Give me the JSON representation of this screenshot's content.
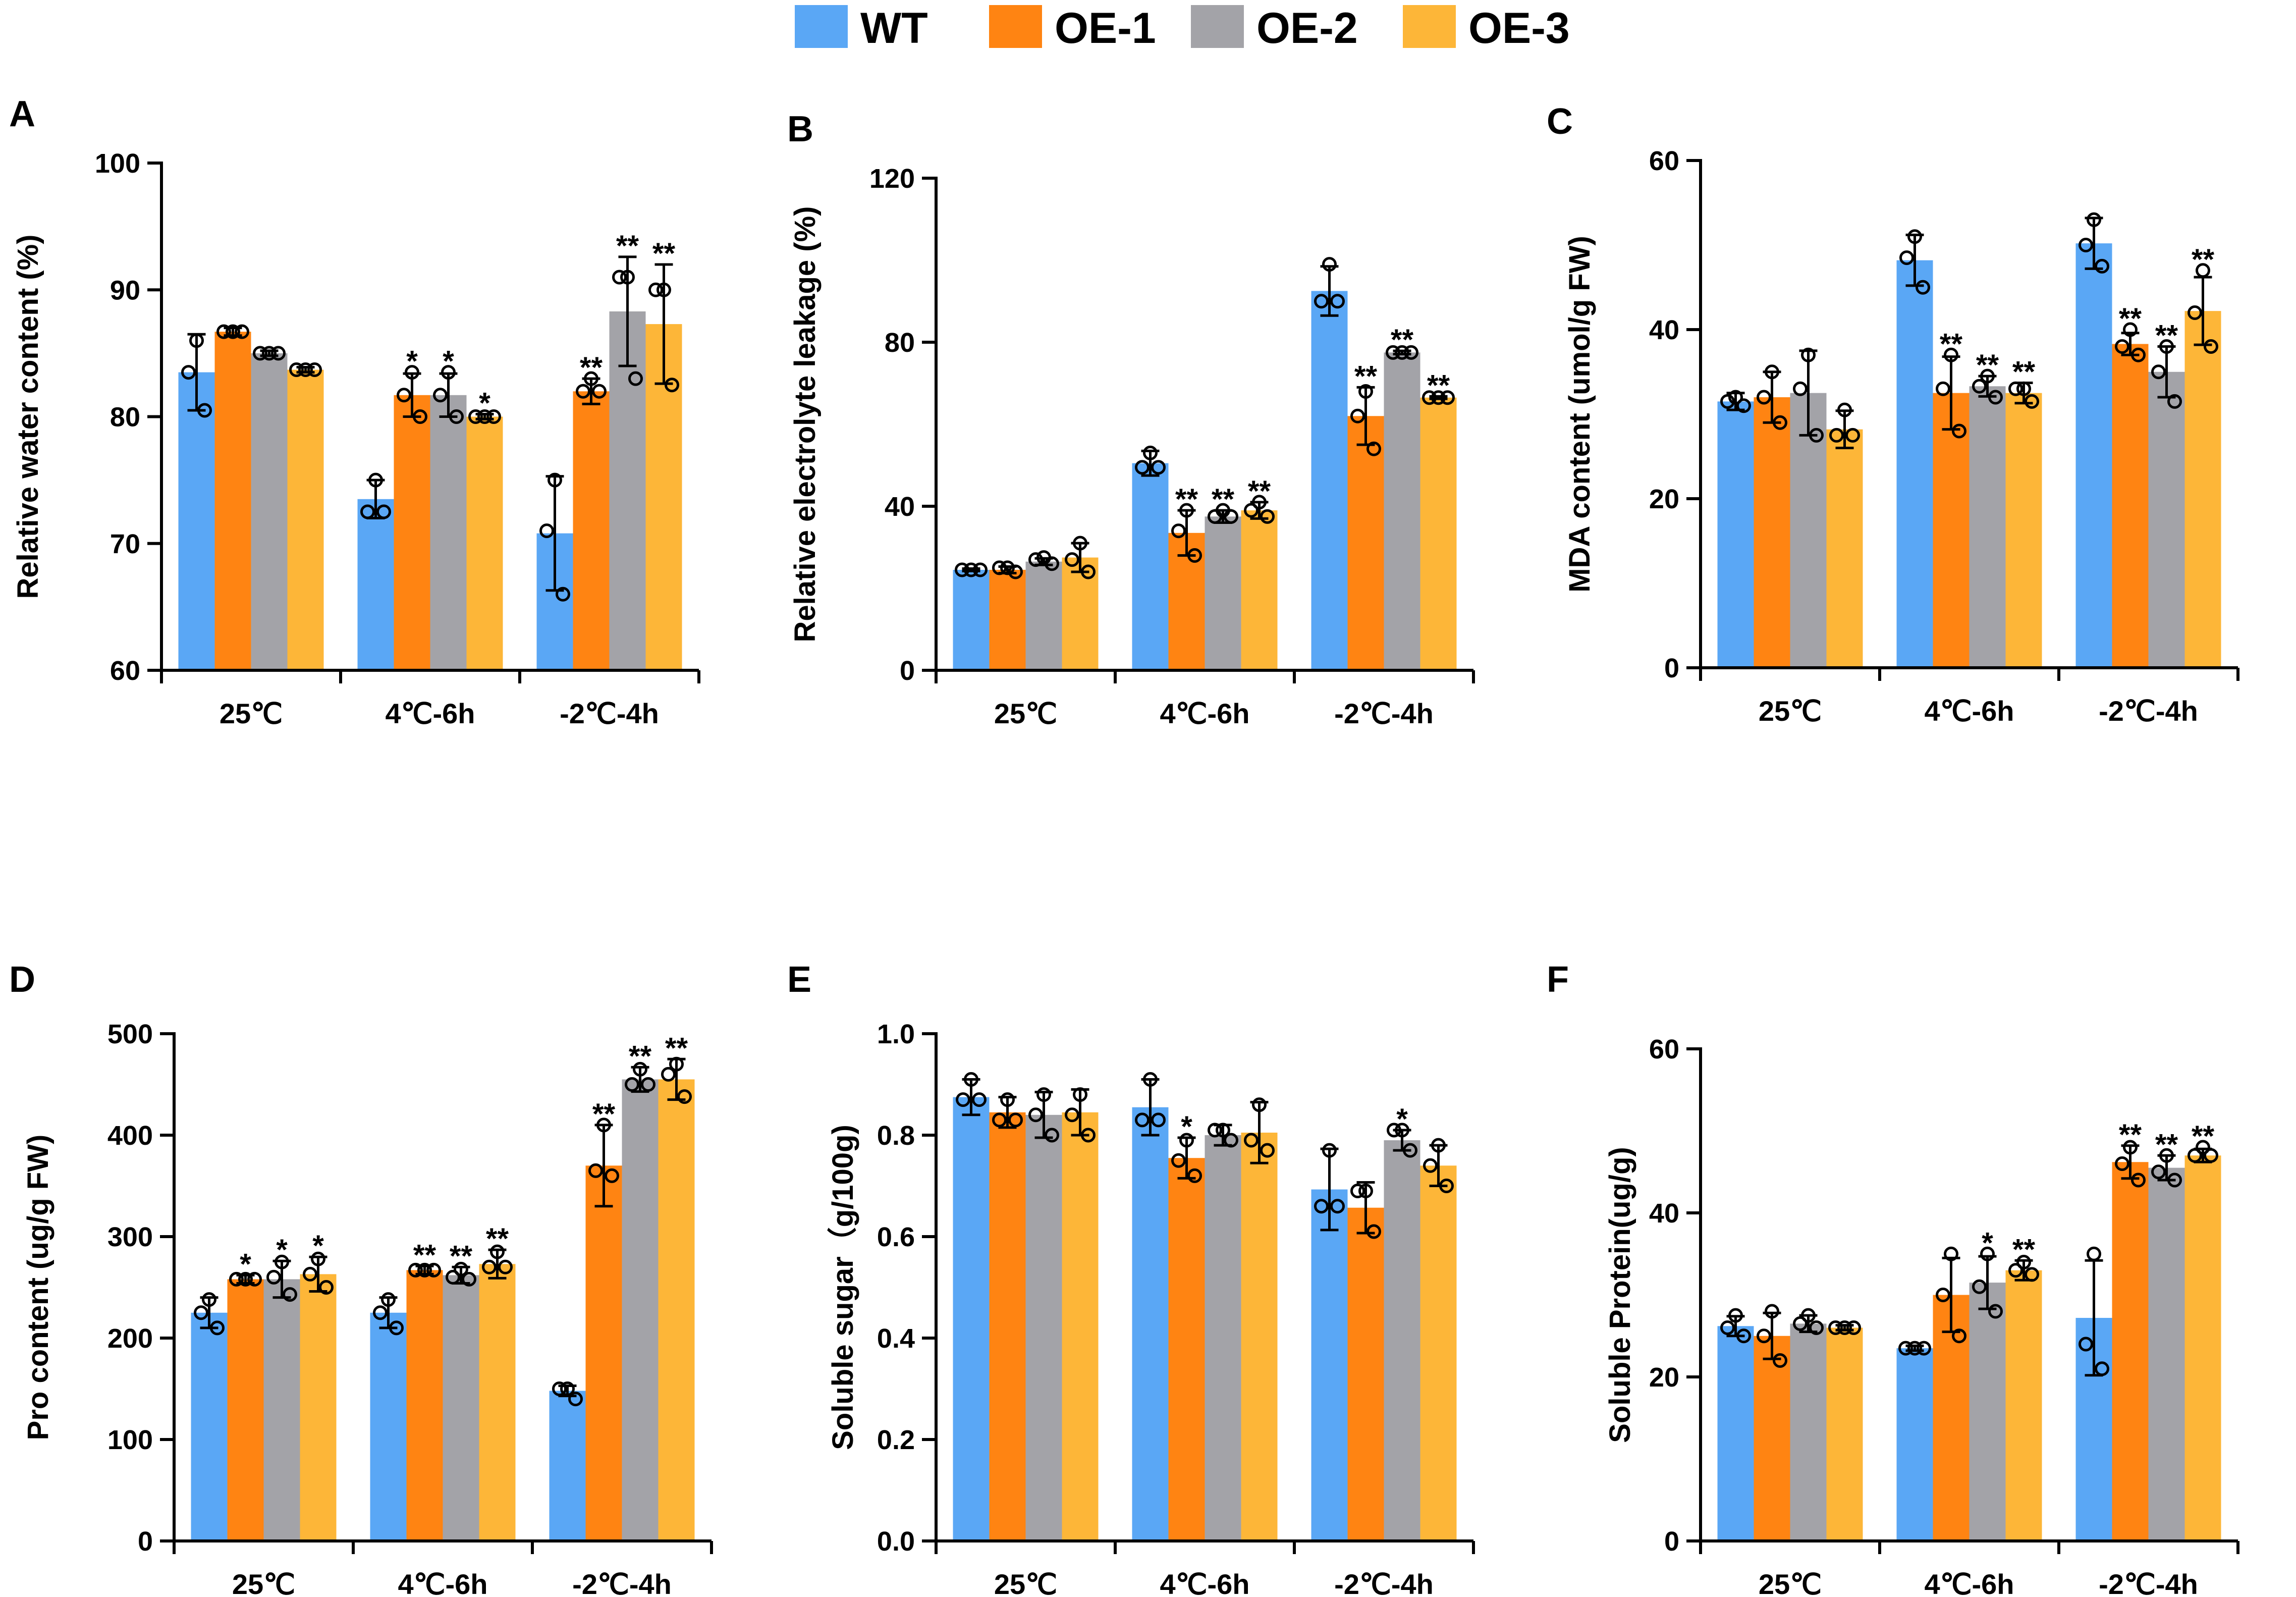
{
  "legend": [
    {
      "name": "WT",
      "color": "#5aa7f5"
    },
    {
      "name": "OE-1",
      "color": "#ff8412"
    },
    {
      "name": "OE-2",
      "color": "#a3a3a8"
    },
    {
      "name": "OE-3",
      "color": "#fdb638"
    }
  ],
  "chart_data": [
    {
      "panel": "A",
      "type": "bar",
      "ylabel": "Relative water content (%)",
      "ylim": [
        60,
        100
      ],
      "yticks": [
        60,
        70,
        80,
        90,
        100
      ],
      "categories": [
        "25℃",
        "4℃-6h",
        "-2℃-4h"
      ],
      "series": [
        {
          "name": "WT",
          "values": [
            83.5,
            73.5,
            70.8
          ],
          "errors": [
            3.0,
            1.5,
            4.5
          ],
          "points": [
            [
              86,
              83.5,
              80.5
            ],
            [
              75,
              72.5,
              72.5
            ],
            [
              75,
              71,
              66
            ]
          ]
        },
        {
          "name": "OE-1",
          "values": [
            86.7,
            81.7,
            82.0
          ],
          "errors": [
            0.3,
            1.7,
            1.0
          ],
          "points": [
            [
              86.7,
              86.7,
              86.7
            ],
            [
              83.5,
              81.7,
              80
            ],
            [
              83,
              82,
              82
            ]
          ]
        },
        {
          "name": "OE-2",
          "values": [
            85.0,
            81.7,
            88.3
          ],
          "errors": [
            0.2,
            1.7,
            4.3
          ],
          "points": [
            [
              85,
              85,
              85
            ],
            [
              83.5,
              81.7,
              80
            ],
            [
              91,
              91,
              83
            ]
          ]
        },
        {
          "name": "OE-3",
          "values": [
            83.7,
            80.0,
            87.3
          ],
          "errors": [
            0.2,
            0.2,
            4.7
          ],
          "points": [
            [
              83.7,
              83.7,
              83.7
            ],
            [
              80,
              80,
              80
            ],
            [
              90,
              90,
              82.5
            ]
          ]
        }
      ],
      "significance": [
        [
          "",
          "",
          ""
        ],
        [
          "",
          "*",
          "**"
        ],
        [
          "",
          "*",
          "**"
        ],
        [
          "",
          "*",
          "**"
        ]
      ]
    },
    {
      "panel": "B",
      "type": "bar",
      "ylabel": "Relative electrolyte leakage (%)",
      "ylim": [
        0,
        120
      ],
      "yticks": [
        0,
        40,
        80,
        120
      ],
      "categories": [
        "25℃",
        "4℃-6h",
        "-2℃-4h"
      ],
      "series": [
        {
          "name": "WT",
          "values": [
            24.5,
            50.5,
            92.5
          ],
          "errors": [
            0.3,
            3.0,
            6.0
          ],
          "points": [
            [
              24.5,
              24.5,
              24.5
            ],
            [
              53,
              49.5,
              49.5
            ],
            [
              99,
              90,
              90
            ]
          ]
        },
        {
          "name": "OE-1",
          "values": [
            24.5,
            33.5,
            62.0
          ],
          "errors": [
            0.8,
            5.5,
            7.0
          ],
          "points": [
            [
              25,
              25,
              24
            ],
            [
              39,
              34,
              28
            ],
            [
              68,
              62,
              54
            ]
          ]
        },
        {
          "name": "OE-2",
          "values": [
            26.5,
            37.5,
            77.5
          ],
          "errors": [
            0.8,
            1.5,
            0.4
          ],
          "points": [
            [
              27.5,
              27,
              26
            ],
            [
              39,
              37.5,
              37.5
            ],
            [
              77.5,
              77.5,
              77.5
            ]
          ]
        },
        {
          "name": "OE-3",
          "values": [
            27.5,
            39.0,
            66.5
          ],
          "errors": [
            3.5,
            2.0,
            0.3
          ],
          "points": [
            [
              31,
              27,
              24
            ],
            [
              41,
              39,
              37.5
            ],
            [
              66.5,
              66.5,
              66.5
            ]
          ]
        }
      ],
      "significance": [
        [
          "",
          "",
          ""
        ],
        [
          "",
          "**",
          "**"
        ],
        [
          "",
          "**",
          "**"
        ],
        [
          "",
          "**",
          "**"
        ]
      ]
    },
    {
      "panel": "C",
      "type": "bar",
      "ylabel": "MDA content (umol/g FW)",
      "ylim": [
        0,
        60
      ],
      "yticks": [
        0,
        20,
        40,
        60
      ],
      "categories": [
        "25℃",
        "4℃-6h",
        "-2℃-4h"
      ],
      "series": [
        {
          "name": "WT",
          "values": [
            31.5,
            48.2,
            50.2
          ],
          "errors": [
            1.0,
            3.0,
            3.0
          ],
          "points": [
            [
              32,
              31.5,
              31
            ],
            [
              51,
              48.5,
              45
            ],
            [
              53,
              50,
              47.5
            ]
          ]
        },
        {
          "name": "OE-1",
          "values": [
            32.0,
            32.5,
            38.3
          ],
          "errors": [
            3.0,
            4.3,
            1.3
          ],
          "points": [
            [
              35,
              32,
              29
            ],
            [
              37,
              33,
              28
            ],
            [
              40,
              38,
              37
            ]
          ]
        },
        {
          "name": "OE-2",
          "values": [
            32.5,
            33.3,
            35.0
          ],
          "errors": [
            5.0,
            1.2,
            3.0
          ],
          "points": [
            [
              37,
              33,
              27.5
            ],
            [
              34.5,
              33.3,
              32
            ],
            [
              38,
              35,
              31.5
            ]
          ]
        },
        {
          "name": "OE-3",
          "values": [
            28.2,
            32.5,
            42.2
          ],
          "errors": [
            2.2,
            1.2,
            4.0
          ],
          "points": [
            [
              30.5,
              27.5,
              27.5
            ],
            [
              33,
              33,
              31.5
            ],
            [
              47,
              42,
              38
            ]
          ]
        }
      ],
      "significance": [
        [
          "",
          "",
          ""
        ],
        [
          "",
          "**",
          "**"
        ],
        [
          "",
          "**",
          "**"
        ],
        [
          "",
          "**",
          "**"
        ]
      ]
    },
    {
      "panel": "D",
      "type": "bar",
      "ylabel": "Pro content (ug/g FW)",
      "ylim": [
        0,
        500
      ],
      "yticks": [
        0,
        100,
        200,
        300,
        400,
        500
      ],
      "categories": [
        "25℃",
        "4℃-6h",
        "-2℃-4h"
      ],
      "series": [
        {
          "name": "WT",
          "values": [
            225,
            225,
            148
          ],
          "errors": [
            15,
            15,
            5
          ],
          "points": [
            [
              238,
              225,
              210
            ],
            [
              238,
              225,
              210
            ],
            [
              150,
              150,
              140
            ]
          ]
        },
        {
          "name": "OE-1",
          "values": [
            258,
            267,
            370
          ],
          "errors": [
            4,
            4,
            40
          ],
          "points": [
            [
              258,
              258,
              258
            ],
            [
              267,
              267,
              267
            ],
            [
              410,
              365,
              360
            ]
          ]
        },
        {
          "name": "OE-2",
          "values": [
            258,
            262,
            455
          ],
          "errors": [
            18,
            8,
            12
          ],
          "points": [
            [
              275,
              260,
              243
            ],
            [
              268,
              260,
              258
            ],
            [
              465,
              450,
              450
            ]
          ]
        },
        {
          "name": "OE-3",
          "values": [
            263,
            273,
            455
          ],
          "errors": [
            17,
            14,
            20
          ],
          "points": [
            [
              278,
              263,
              250
            ],
            [
              285,
              270,
              270
            ],
            [
              470,
              460,
              438
            ]
          ]
        }
      ],
      "significance": [
        [
          "",
          "",
          ""
        ],
        [
          "*",
          "**",
          "**"
        ],
        [
          "*",
          "**",
          "**"
        ],
        [
          "*",
          "**",
          "**"
        ]
      ]
    },
    {
      "panel": "E",
      "type": "bar",
      "ylabel": "Soluble sugar（g/100g)",
      "ylim": [
        0,
        1.0
      ],
      "yticks": [
        "0.0",
        "0.2",
        "0.4",
        "0.6",
        "0.8",
        "1.0"
      ],
      "categories": [
        "25℃",
        "4℃-6h",
        "-2℃-4h"
      ],
      "series": [
        {
          "name": "WT",
          "values": [
            0.875,
            0.855,
            0.693
          ],
          "errors": [
            0.035,
            0.055,
            0.08
          ],
          "points": [
            [
              0.91,
              0.87,
              0.87
            ],
            [
              0.91,
              0.83,
              0.83
            ],
            [
              0.77,
              0.66,
              0.66
            ]
          ]
        },
        {
          "name": "OE-1",
          "values": [
            0.845,
            0.755,
            0.657
          ],
          "errors": [
            0.03,
            0.04,
            0.05
          ],
          "points": [
            [
              0.87,
              0.83,
              0.83
            ],
            [
              0.79,
              0.75,
              0.72
            ],
            [
              0.69,
              0.69,
              0.61
            ]
          ]
        },
        {
          "name": "OE-2",
          "values": [
            0.84,
            0.8,
            0.79
          ],
          "errors": [
            0.045,
            0.02,
            0.02
          ],
          "points": [
            [
              0.88,
              0.84,
              0.8
            ],
            [
              0.81,
              0.81,
              0.79
            ],
            [
              0.81,
              0.81,
              0.77
            ]
          ]
        },
        {
          "name": "OE-3",
          "values": [
            0.845,
            0.805,
            0.74
          ],
          "errors": [
            0.045,
            0.06,
            0.04
          ],
          "points": [
            [
              0.88,
              0.84,
              0.8
            ],
            [
              0.86,
              0.79,
              0.77
            ],
            [
              0.78,
              0.74,
              0.7
            ]
          ]
        }
      ],
      "significance": [
        [
          "",
          "",
          ""
        ],
        [
          "",
          "*",
          ""
        ],
        [
          "",
          "",
          "*"
        ],
        [
          "",
          "",
          ""
        ]
      ]
    },
    {
      "panel": "F",
      "type": "bar",
      "ylabel": "Soluble Protein(ug/g)",
      "ylim": [
        0,
        60
      ],
      "yticks": [
        0,
        20,
        40,
        60
      ],
      "categories": [
        "25℃",
        "4℃-6h",
        "-2℃-4h"
      ],
      "series": [
        {
          "name": "WT",
          "values": [
            26.2,
            23.5,
            27.2
          ],
          "errors": [
            1.2,
            0.3,
            7.0
          ],
          "points": [
            [
              27.5,
              26,
              25
            ],
            [
              23.5,
              23.5,
              23.5
            ],
            [
              35,
              24,
              21
            ]
          ]
        },
        {
          "name": "OE-1",
          "values": [
            25.0,
            30.0,
            46.2
          ],
          "errors": [
            2.8,
            4.5,
            2.0
          ],
          "points": [
            [
              28,
              25,
              22
            ],
            [
              35,
              30,
              25
            ],
            [
              48,
              46,
              44
            ]
          ]
        },
        {
          "name": "OE-2",
          "values": [
            26.5,
            31.5,
            45.5
          ],
          "errors": [
            1.0,
            3.2,
            1.5
          ],
          "points": [
            [
              27.5,
              26.5,
              26
            ],
            [
              35,
              31,
              28
            ],
            [
              47,
              45,
              44
            ]
          ]
        },
        {
          "name": "OE-3",
          "values": [
            26.0,
            33.0,
            47.0
          ],
          "errors": [
            0.3,
            1.2,
            0.8
          ],
          "points": [
            [
              26,
              26,
              26
            ],
            [
              34,
              33,
              32.5
            ],
            [
              48,
              47,
              47
            ]
          ]
        }
      ],
      "significance": [
        [
          "",
          "",
          ""
        ],
        [
          "",
          "",
          "**"
        ],
        [
          "",
          "*",
          "**"
        ],
        [
          "",
          "**",
          "**"
        ]
      ]
    }
  ]
}
